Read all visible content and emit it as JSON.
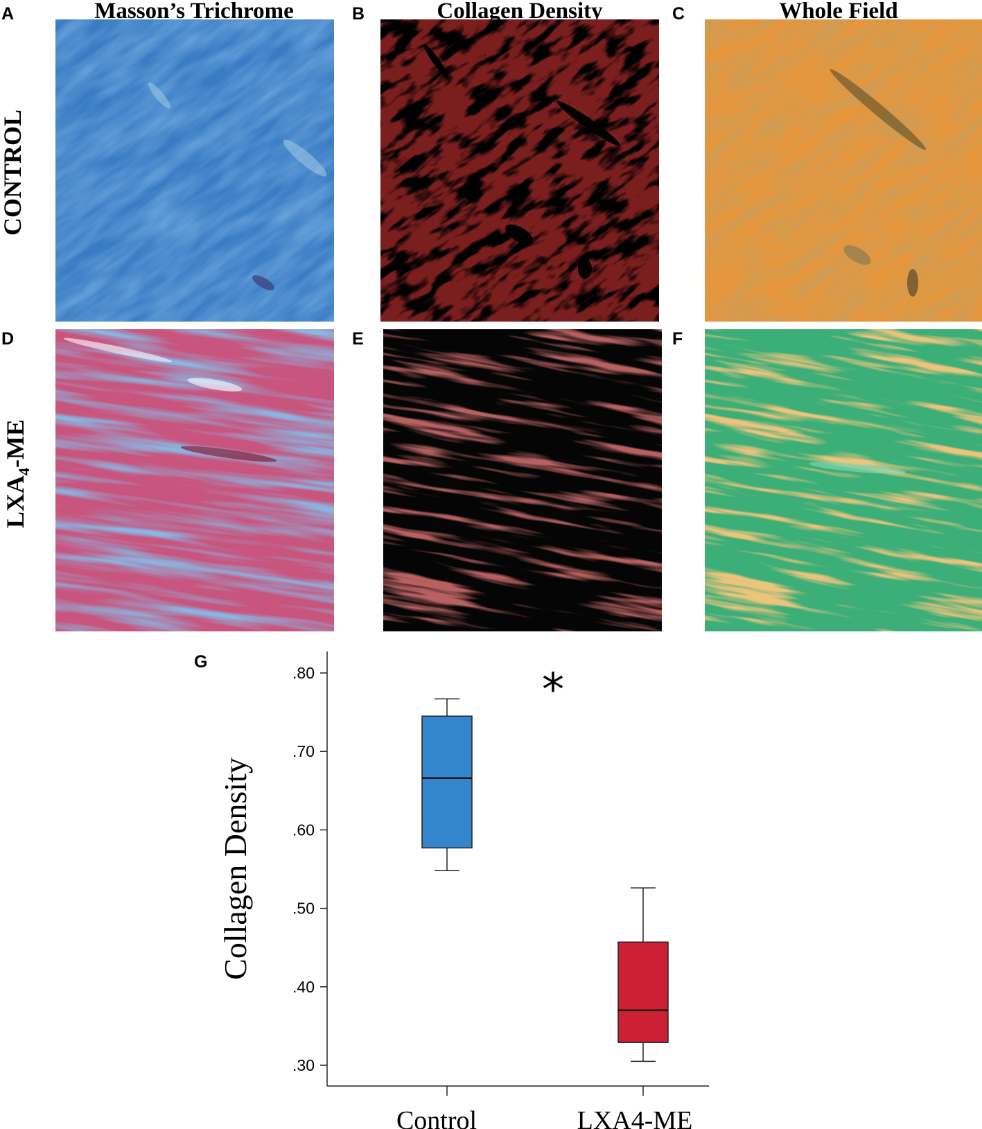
{
  "figure": {
    "columns": [
      {
        "letter_top": "A",
        "title": "Masson’s Trichrome"
      },
      {
        "letter_top": "B",
        "title": "Collagen Density"
      },
      {
        "letter_top": "C",
        "title": "Whole Field"
      }
    ],
    "rows": [
      {
        "label": "CONTROL",
        "label_sub": "",
        "label_tail": ""
      },
      {
        "label": "LXA",
        "label_sub": "4",
        "label_tail": "-ME"
      }
    ],
    "bottom_letters": [
      "D",
      "E",
      "F"
    ],
    "chart_letter": "G",
    "colors": {
      "control_trichrome": "#3a7cc4",
      "collagen_red": "#7a1e1e",
      "whole_field_orange": "#e6963c",
      "lxa_trichrome_pink": "#c8557e",
      "lxa_trichrome_blue": "#3f78c0",
      "whole_field_green": "#3cae78"
    }
  },
  "chart_data": {
    "type": "box",
    "ylabel": "Collagen Density",
    "categories": [
      "Control",
      "LXA4-ME"
    ],
    "yticks": [
      ".30",
      ".40",
      ".50",
      ".60",
      ".70",
      ".80"
    ],
    "ytick_values": [
      0.3,
      0.4,
      0.5,
      0.6,
      0.7,
      0.8
    ],
    "ylim": [
      0.27,
      0.84
    ],
    "significance": "*",
    "boxes": [
      {
        "category": "Control",
        "min": 0.548,
        "q1": 0.577,
        "median": 0.666,
        "q3": 0.745,
        "max": 0.767,
        "color": "#3385cc"
      },
      {
        "category": "LXA4-ME",
        "min": 0.305,
        "q1": 0.329,
        "median": 0.37,
        "q3": 0.457,
        "max": 0.526,
        "color": "#cc2035"
      }
    ]
  }
}
